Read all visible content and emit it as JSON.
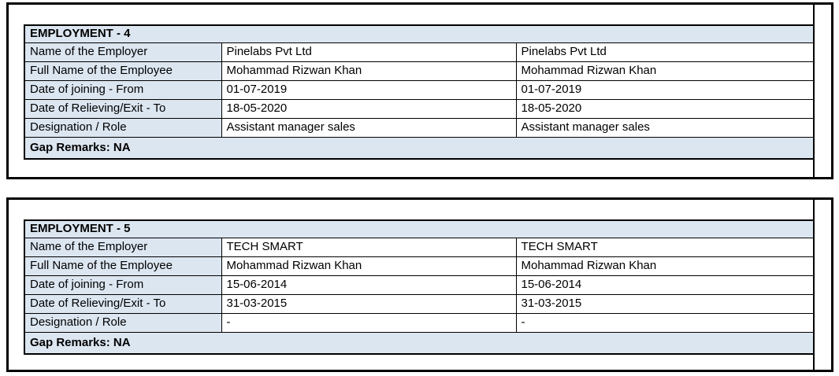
{
  "colors": {
    "header_fill": "#dce6f1",
    "border": "#000000",
    "background": "#ffffff",
    "text": "#000000"
  },
  "tables": [
    {
      "title": "EMPLOYMENT - 4",
      "rows": [
        {
          "label": "Name of the Employer",
          "value1": "Pinelabs Pvt Ltd",
          "value2": "Pinelabs Pvt Ltd"
        },
        {
          "label": "Full Name of the Employee",
          "value1": "Mohammad Rizwan Khan",
          "value2": "Mohammad Rizwan Khan"
        },
        {
          "label": "Date of joining - From",
          "value1": "01-07-2019",
          "value2": "01-07-2019"
        },
        {
          "label": "Date of Relieving/Exit - To",
          "value1": "18-05-2020",
          "value2": "18-05-2020"
        },
        {
          "label": "Designation / Role",
          "value1": "Assistant manager sales",
          "value2": "Assistant manager sales"
        }
      ],
      "gap_remarks": "Gap Remarks: NA"
    },
    {
      "title": "EMPLOYMENT - 5",
      "rows": [
        {
          "label": "Name of the Employer",
          "value1": "TECH SMART",
          "value2": "TECH SMART"
        },
        {
          "label": "Full Name of the Employee",
          "value1": "Mohammad Rizwan Khan",
          "value2": "Mohammad Rizwan Khan"
        },
        {
          "label": "Date of joining - From",
          "value1": "15-06-2014",
          "value2": "15-06-2014"
        },
        {
          "label": "Date of Relieving/Exit - To",
          "value1": "31-03-2015",
          "value2": "31-03-2015"
        },
        {
          "label": "Designation / Role",
          "value1": "-",
          "value2": "-"
        }
      ],
      "gap_remarks": "Gap Remarks: NA"
    }
  ]
}
